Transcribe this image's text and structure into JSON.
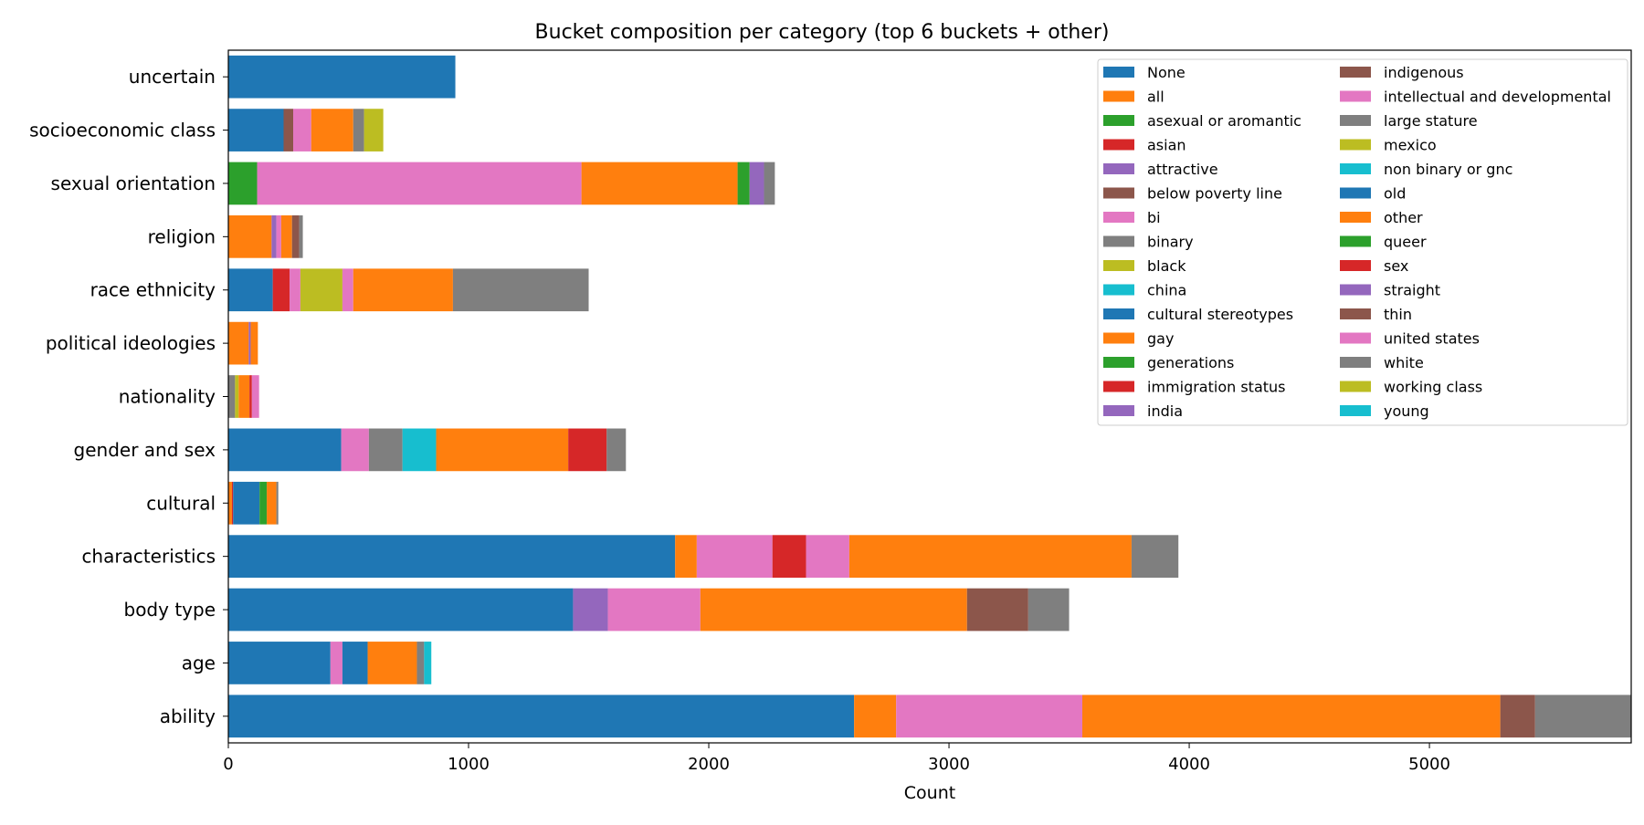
{
  "chart_data": {
    "type": "bar",
    "orientation": "horizontal",
    "stacked": true,
    "title": "Bucket composition per category (top 6 buckets + other)",
    "xlabel": "Count",
    "ylabel": "",
    "xlim": [
      0,
      5840
    ],
    "xticks": [
      0,
      1000,
      2000,
      3000,
      4000,
      5000
    ],
    "grid": false,
    "legend_position": "top-right",
    "legend_columns": 2,
    "categories": [
      "uncertain",
      "socioeconomic class",
      "sexual orientation",
      "religion",
      "race ethnicity",
      "political ideologies",
      "nationality",
      "gender and sex",
      "cultural",
      "characteristics",
      "body type",
      "age",
      "ability"
    ],
    "legend": [
      {
        "name": "None",
        "color": "#1f77b4"
      },
      {
        "name": "all",
        "color": "#ff7f0e"
      },
      {
        "name": "asexual or aromantic",
        "color": "#2ca02c"
      },
      {
        "name": "asian",
        "color": "#d62728"
      },
      {
        "name": "attractive",
        "color": "#9467bd"
      },
      {
        "name": "below poverty line",
        "color": "#8c564b"
      },
      {
        "name": "bi",
        "color": "#e377c2"
      },
      {
        "name": "binary",
        "color": "#7f7f7f"
      },
      {
        "name": "black",
        "color": "#bcbd22"
      },
      {
        "name": "china",
        "color": "#17becf"
      },
      {
        "name": "cultural stereotypes",
        "color": "#1f77b4"
      },
      {
        "name": "gay",
        "color": "#ff7f0e"
      },
      {
        "name": "generations",
        "color": "#2ca02c"
      },
      {
        "name": "immigration status",
        "color": "#d62728"
      },
      {
        "name": "india",
        "color": "#9467bd"
      },
      {
        "name": "indigenous",
        "color": "#8c564b"
      },
      {
        "name": "intellectual and developmental",
        "color": "#e377c2"
      },
      {
        "name": "large stature",
        "color": "#7f7f7f"
      },
      {
        "name": "mexico",
        "color": "#bcbd22"
      },
      {
        "name": "non binary or gnc",
        "color": "#17becf"
      },
      {
        "name": "old",
        "color": "#1f77b4"
      },
      {
        "name": "other",
        "color": "#ff7f0e"
      },
      {
        "name": "queer",
        "color": "#2ca02c"
      },
      {
        "name": "sex",
        "color": "#d62728"
      },
      {
        "name": "straight",
        "color": "#9467bd"
      },
      {
        "name": "thin",
        "color": "#8c564b"
      },
      {
        "name": "united states",
        "color": "#e377c2"
      },
      {
        "name": "white",
        "color": "#7f7f7f"
      },
      {
        "name": "working class",
        "color": "#bcbd22"
      },
      {
        "name": "young",
        "color": "#17becf"
      }
    ],
    "stacks": [
      {
        "category": "uncertain",
        "segments": [
          {
            "value": 945,
            "color": "#1f77b4"
          }
        ]
      },
      {
        "category": "socioeconomic class",
        "segments": [
          {
            "value": 230,
            "color": "#1f77b4"
          },
          {
            "value": 40,
            "color": "#8c564b"
          },
          {
            "value": 75,
            "color": "#e377c2"
          },
          {
            "value": 175,
            "color": "#ff7f0e"
          },
          {
            "value": 45,
            "color": "#7f7f7f"
          },
          {
            "value": 80,
            "color": "#bcbd22"
          }
        ]
      },
      {
        "category": "sexual orientation",
        "segments": [
          {
            "value": 120,
            "color": "#2ca02c"
          },
          {
            "value": 1350,
            "color": "#e377c2"
          },
          {
            "value": 650,
            "color": "#ff7f0e"
          },
          {
            "value": 50,
            "color": "#2ca02c"
          },
          {
            "value": 60,
            "color": "#9467bd"
          },
          {
            "value": 45,
            "color": "#7f7f7f"
          }
        ]
      },
      {
        "category": "religion",
        "segments": [
          {
            "value": 180,
            "color": "#ff7f0e"
          },
          {
            "value": 20,
            "color": "#9467bd"
          },
          {
            "value": 20,
            "color": "#e377c2"
          },
          {
            "value": 45,
            "color": "#ff7f0e"
          },
          {
            "value": 30,
            "color": "#8c564b"
          },
          {
            "value": 15,
            "color": "#7f7f7f"
          }
        ]
      },
      {
        "category": "race ethnicity",
        "segments": [
          {
            "value": 185,
            "color": "#1f77b4"
          },
          {
            "value": 70,
            "color": "#d62728"
          },
          {
            "value": 45,
            "color": "#e377c2"
          },
          {
            "value": 175,
            "color": "#bcbd22"
          },
          {
            "value": 45,
            "color": "#e377c2"
          },
          {
            "value": 415,
            "color": "#ff7f0e"
          },
          {
            "value": 565,
            "color": "#7f7f7f"
          }
        ]
      },
      {
        "category": "political ideologies",
        "segments": [
          {
            "value": 85,
            "color": "#ff7f0e"
          },
          {
            "value": 8,
            "color": "#9467bd"
          },
          {
            "value": 30,
            "color": "#ff7f0e"
          }
        ]
      },
      {
        "category": "nationality",
        "segments": [
          {
            "value": 28,
            "color": "#7f7f7f"
          },
          {
            "value": 15,
            "color": "#bcbd22"
          },
          {
            "value": 45,
            "color": "#ff7f0e"
          },
          {
            "value": 10,
            "color": "#d62728"
          },
          {
            "value": 30,
            "color": "#e377c2"
          }
        ]
      },
      {
        "category": "gender and sex",
        "segments": [
          {
            "value": 470,
            "color": "#1f77b4"
          },
          {
            "value": 115,
            "color": "#e377c2"
          },
          {
            "value": 140,
            "color": "#7f7f7f"
          },
          {
            "value": 140,
            "color": "#17becf"
          },
          {
            "value": 550,
            "color": "#ff7f0e"
          },
          {
            "value": 160,
            "color": "#d62728"
          },
          {
            "value": 80,
            "color": "#7f7f7f"
          }
        ]
      },
      {
        "category": "cultural",
        "segments": [
          {
            "value": 15,
            "color": "#ff7f0e"
          },
          {
            "value": 5,
            "color": "#d62728"
          },
          {
            "value": 110,
            "color": "#1f77b4"
          },
          {
            "value": 30,
            "color": "#2ca02c"
          },
          {
            "value": 40,
            "color": "#ff7f0e"
          },
          {
            "value": 8,
            "color": "#7f7f7f"
          }
        ]
      },
      {
        "category": "characteristics",
        "segments": [
          {
            "value": 1860,
            "color": "#1f77b4"
          },
          {
            "value": 90,
            "color": "#ff7f0e"
          },
          {
            "value": 315,
            "color": "#e377c2"
          },
          {
            "value": 140,
            "color": "#d62728"
          },
          {
            "value": 180,
            "color": "#e377c2"
          },
          {
            "value": 1175,
            "color": "#ff7f0e"
          },
          {
            "value": 195,
            "color": "#7f7f7f"
          }
        ]
      },
      {
        "category": "body type",
        "segments": [
          {
            "value": 1435,
            "color": "#1f77b4"
          },
          {
            "value": 145,
            "color": "#9467bd"
          },
          {
            "value": 385,
            "color": "#e377c2"
          },
          {
            "value": 1110,
            "color": "#ff7f0e"
          },
          {
            "value": 255,
            "color": "#8c564b"
          },
          {
            "value": 170,
            "color": "#7f7f7f"
          }
        ]
      },
      {
        "category": "age",
        "segments": [
          {
            "value": 425,
            "color": "#1f77b4"
          },
          {
            "value": 50,
            "color": "#e377c2"
          },
          {
            "value": 105,
            "color": "#1f77b4"
          },
          {
            "value": 205,
            "color": "#ff7f0e"
          },
          {
            "value": 30,
            "color": "#7f7f7f"
          },
          {
            "value": 30,
            "color": "#17becf"
          }
        ]
      },
      {
        "category": "ability",
        "segments": [
          {
            "value": 2605,
            "color": "#1f77b4"
          },
          {
            "value": 175,
            "color": "#ff7f0e"
          },
          {
            "value": 775,
            "color": "#e377c2"
          },
          {
            "value": 1740,
            "color": "#ff7f0e"
          },
          {
            "value": 145,
            "color": "#8c564b"
          },
          {
            "value": 400,
            "color": "#7f7f7f"
          }
        ]
      }
    ]
  }
}
